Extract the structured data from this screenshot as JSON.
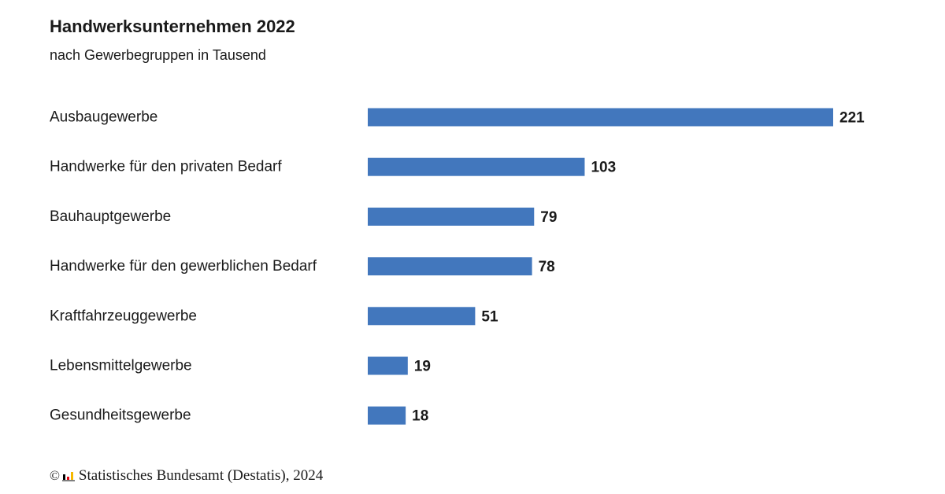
{
  "chart_data": {
    "type": "bar",
    "orientation": "horizontal",
    "title": "Handwerksunternehmen 2022",
    "subtitle": "nach Gewerbegruppen in Tausend",
    "categories": [
      "Ausbaugewerbe",
      "Handwerke für den privaten Bedarf",
      "Bauhauptgewerbe",
      "Handwerke für den gewerblichen Bedarf",
      "Kraftfahrzeuggewerbe",
      "Lebensmittelgewerbe",
      "Gesundheitsgewerbe"
    ],
    "values": [
      221,
      103,
      79,
      78,
      51,
      19,
      18
    ],
    "bar_color": "#4277bd",
    "xlim": [
      0,
      221
    ],
    "grid": false,
    "legend": "none"
  },
  "footer": {
    "copyright_symbol": "©",
    "source": "Statistisches Bundesamt (Destatis), 2024",
    "logo_icon": "destatis-logo-icon",
    "logo_colors": [
      "#000000",
      "#e30613",
      "#f6b800"
    ]
  }
}
